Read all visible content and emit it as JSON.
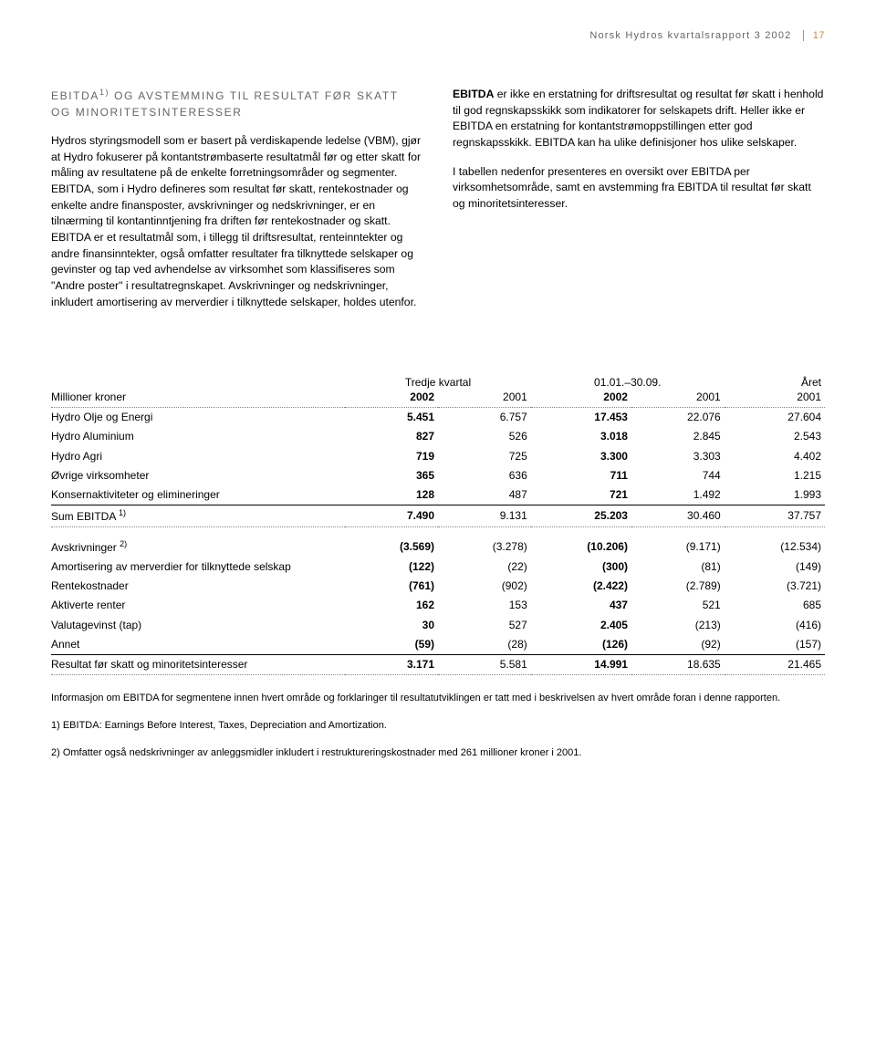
{
  "header": {
    "running_title": "Norsk Hydros kvartalsrapport 3 2002",
    "page_number": "17"
  },
  "section": {
    "title_line1": "EBITDA",
    "title_sup": "1)",
    "title_line1_rest": " OG AVSTEMMING TIL RESULTAT FØR SKATT",
    "title_line2": "OG MINORITETSINTERESSER"
  },
  "body": {
    "left_p1": "Hydros styringsmodell som er basert på verdiskapende ledelse (VBM), gjør at Hydro fokuserer på kontantstrømbaserte resultatmål før og etter skatt for måling av resultatene på de enkelte forretningsområder og segmenter. EBITDA, som i Hydro defineres som resultat før skatt, rentekostnader og enkelte andre finansposter, avskrivninger og nedskrivninger, er en tilnærming til kontantinntjening fra driften før rentekostnader og skatt. EBITDA er et resultatmål som, i tillegg til driftsresultat, renteinntekter og andre finansinntekter, også omfatter resultater fra tilknyttede selskaper og gevinster og tap ved avhendelse av virksomhet som klassifiseres som \"Andre poster\" i resultatregnskapet. Avskrivninger og nedskrivninger, inkludert amortisering av merverdier i tilknyttede selskaper, holdes utenfor.",
    "right_p1_bold": "EBITDA",
    "right_p1_rest": " er ikke en erstatning for driftsresultat og resultat før skatt i henhold til god regnskapsskikk som indikatorer for selskapets drift. Heller ikke er EBITDA en erstatning for kontantstrømoppstillingen etter god regnskapsskikk. EBITDA kan ha ulike definisjoner hos ulike selskaper.",
    "right_p2": "I tabellen nedenfor presenteres en oversikt over EBITDA per virksomhetsområde, samt en avstemming fra EBITDA til resultat før skatt og minoritetsinteresser."
  },
  "table": {
    "group_headers": [
      "",
      "Tredje kvartal",
      "01.01.–30.09.",
      "Året"
    ],
    "col_headers": [
      "Millioner kroner",
      "2002",
      "2001",
      "2002",
      "2001",
      "2001"
    ],
    "rows_top": [
      {
        "label": "Hydro Olje og Energi",
        "v": [
          "5.451",
          "6.757",
          "17.453",
          "22.076",
          "27.604"
        ],
        "bold_idx": [
          0,
          2
        ]
      },
      {
        "label": "Hydro Aluminium",
        "v": [
          "827",
          "526",
          "3.018",
          "2.845",
          "2.543"
        ],
        "bold_idx": [
          0,
          2
        ]
      },
      {
        "label": "Hydro Agri",
        "v": [
          "719",
          "725",
          "3.300",
          "3.303",
          "4.402"
        ],
        "bold_idx": [
          0,
          2
        ]
      },
      {
        "label": "Øvrige virksomheter",
        "v": [
          "365",
          "636",
          "711",
          "744",
          "1.215"
        ],
        "bold_idx": [
          0,
          2
        ]
      },
      {
        "label": "Konsernaktiviteter og elimineringer",
        "v": [
          "128",
          "487",
          "721",
          "1.492",
          "1.993"
        ],
        "bold_idx": [
          0,
          2
        ]
      }
    ],
    "sum_row": {
      "label": "Sum EBITDA",
      "sup": "1)",
      "v": [
        "7.490",
        "9.131",
        "25.203",
        "30.460",
        "37.757"
      ],
      "bold_idx": [
        0,
        2
      ]
    },
    "rows_mid": [
      {
        "label": "Avskrivninger",
        "sup": "2)",
        "v": [
          "(3.569)",
          "(3.278)",
          "(10.206)",
          "(9.171)",
          "(12.534)"
        ],
        "bold_idx": [
          0,
          2
        ]
      },
      {
        "label": "Amortisering av merverdier for tilknyttede selskap",
        "v": [
          "(122)",
          "(22)",
          "(300)",
          "(81)",
          "(149)"
        ],
        "bold_idx": [
          0,
          2
        ]
      },
      {
        "label": "Rentekostnader",
        "v": [
          "(761)",
          "(902)",
          "(2.422)",
          "(2.789)",
          "(3.721)"
        ],
        "bold_idx": [
          0,
          2
        ]
      },
      {
        "label": "Aktiverte renter",
        "v": [
          "162",
          "153",
          "437",
          "521",
          "685"
        ],
        "bold_idx": [
          0,
          2
        ]
      },
      {
        "label": "Valutagevinst (tap)",
        "v": [
          "30",
          "527",
          "2.405",
          "(213)",
          "(416)"
        ],
        "bold_idx": [
          0,
          2
        ]
      },
      {
        "label": "Annet",
        "v": [
          "(59)",
          "(28)",
          "(126)",
          "(92)",
          "(157)"
        ],
        "bold_idx": [
          0,
          2
        ]
      }
    ],
    "result_row": {
      "label": "Resultat før skatt og minoritetsinteresser",
      "v": [
        "3.171",
        "5.581",
        "14.991",
        "18.635",
        "21.465"
      ],
      "bold_idx": [
        0,
        2
      ]
    }
  },
  "footnotes": {
    "info": "Informasjon om EBITDA for segmentene innen hvert område og forklaringer til resultatutviklingen er tatt med i beskrivelsen av hvert område foran i denne rapporten.",
    "fn1": "1) EBITDA: Earnings Before Interest, Taxes, Depreciation and Amortization.",
    "fn2": "2) Omfatter også nedskrivninger av anleggsmidler inkludert i restruktureringskostnader med 261 millioner kroner i 2001."
  },
  "style": {
    "col_widths_pct": [
      38,
      12,
      12,
      13,
      12,
      13
    ]
  }
}
